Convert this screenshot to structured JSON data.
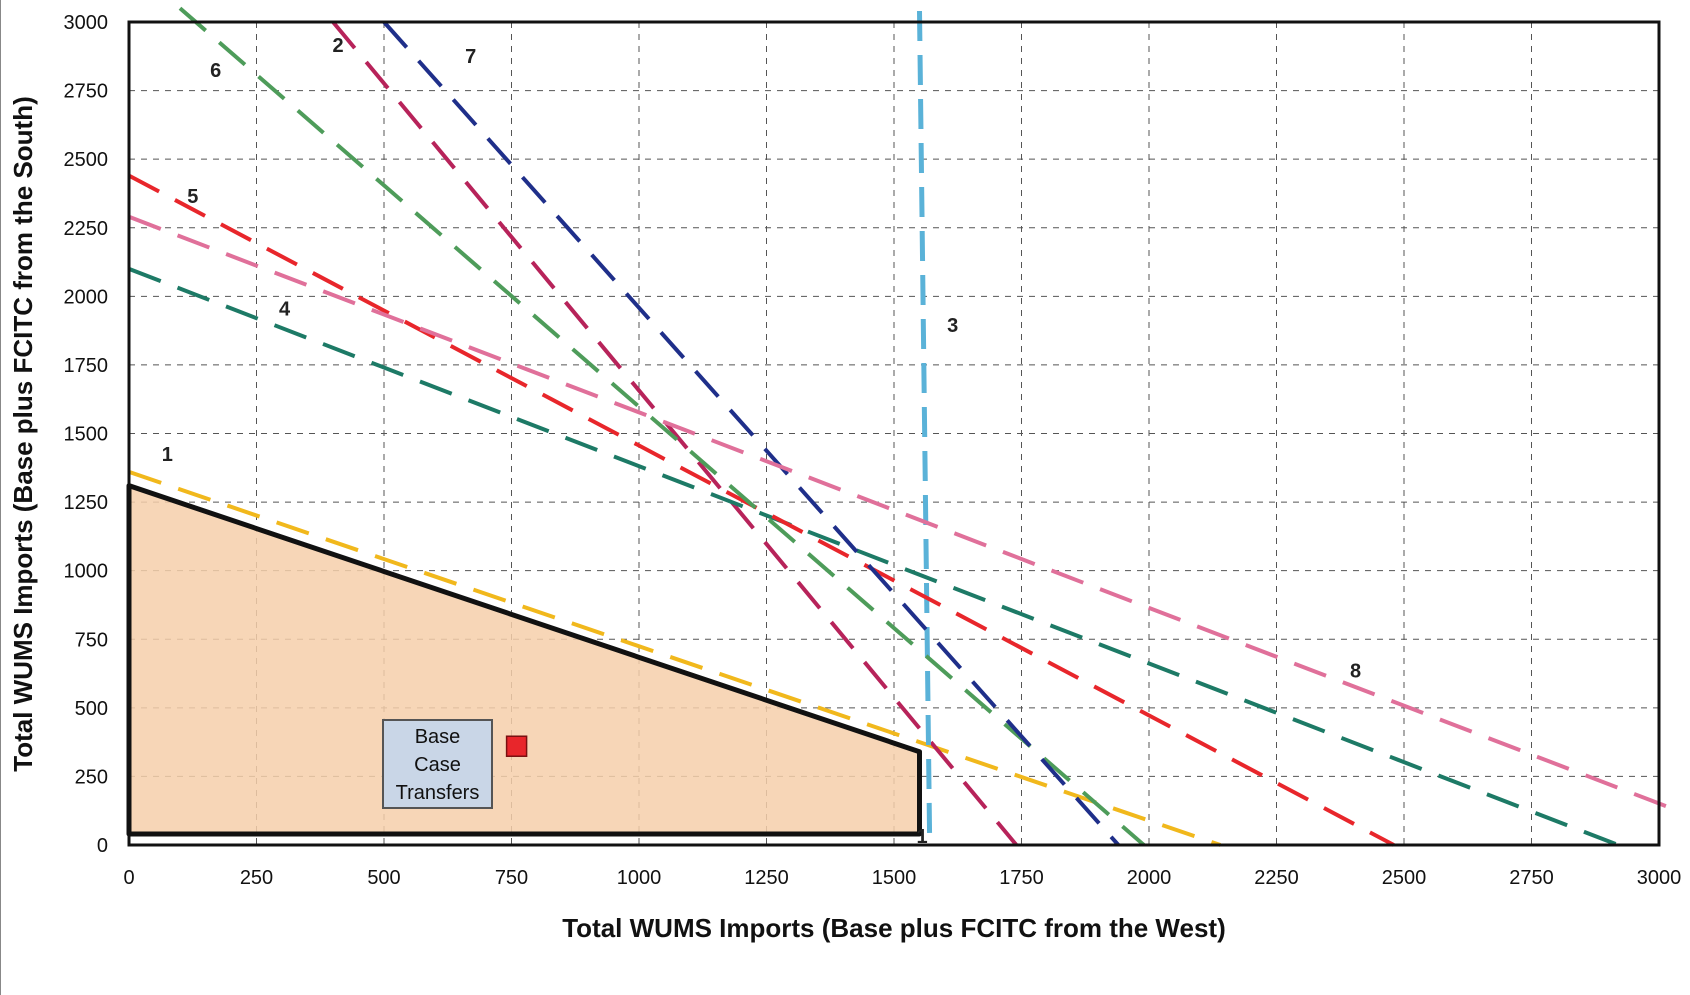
{
  "chart_data": {
    "type": "line",
    "xlabel": "Total WUMS Imports (Base plus FCITC from the West)",
    "ylabel": "Total WUMS Imports (Base plus FCITC from the South)",
    "xlim": [
      0,
      3000
    ],
    "ylim": [
      0,
      3000
    ],
    "x_ticks": [
      0,
      250,
      500,
      750,
      1000,
      1250,
      1500,
      1750,
      2000,
      2250,
      2500,
      2750,
      3000
    ],
    "y_ticks": [
      0,
      250,
      500,
      750,
      1000,
      1250,
      1500,
      1750,
      2000,
      2250,
      2500,
      2750,
      3000
    ],
    "grid": true,
    "region": {
      "points": [
        [
          0,
          1310
        ],
        [
          1550,
          340
        ],
        [
          1550,
          40
        ],
        [
          0,
          40
        ]
      ],
      "color": "#f6cfaa"
    },
    "base_case_point": {
      "x": 760,
      "y": 360,
      "color": "#e8262b",
      "label_lines": [
        "Base",
        "Case",
        "Transfers"
      ]
    },
    "series": [
      {
        "name": "1",
        "color": "#f1b81c",
        "x": [
          0,
          2140
        ],
        "y": [
          1360,
          0
        ],
        "label_at": [
          75,
          1400
        ]
      },
      {
        "name": "2",
        "color": "#b7235a",
        "x": [
          400,
          1740
        ],
        "y": [
          3000,
          0
        ],
        "label_at": [
          410,
          2890
        ]
      },
      {
        "name": "3",
        "color": "#5ab2d8",
        "x": [
          1550,
          1570
        ],
        "y": [
          3040,
          0
        ],
        "label_at": [
          1615,
          1870
        ]
      },
      {
        "name": "4",
        "color": "#1d7a66",
        "x": [
          0,
          2920
        ],
        "y": [
          2100,
          0
        ],
        "label_at": [
          305,
          1930
        ]
      },
      {
        "name": "5",
        "color": "#e8262b",
        "x": [
          0,
          2480
        ],
        "y": [
          2440,
          0
        ],
        "label_at": [
          125,
          2340
        ]
      },
      {
        "name": "6",
        "color": "#4e9c5a",
        "x": [
          100,
          1990
        ],
        "y": [
          3050,
          0
        ],
        "label_at": [
          170,
          2800
        ]
      },
      {
        "name": "7",
        "color": "#1f2f8a",
        "x": [
          500,
          1940
        ],
        "y": [
          3000,
          0
        ],
        "label_at": [
          670,
          2850
        ]
      },
      {
        "name": "8",
        "color": "#e0709a",
        "x": [
          0,
          3030
        ],
        "y": [
          2290,
          130
        ],
        "label_at": [
          2405,
          610
        ]
      }
    ]
  },
  "labels": {
    "box_line1": "Base",
    "box_line2": "Case",
    "box_line3": "Transfers",
    "corner_mark": "1"
  }
}
